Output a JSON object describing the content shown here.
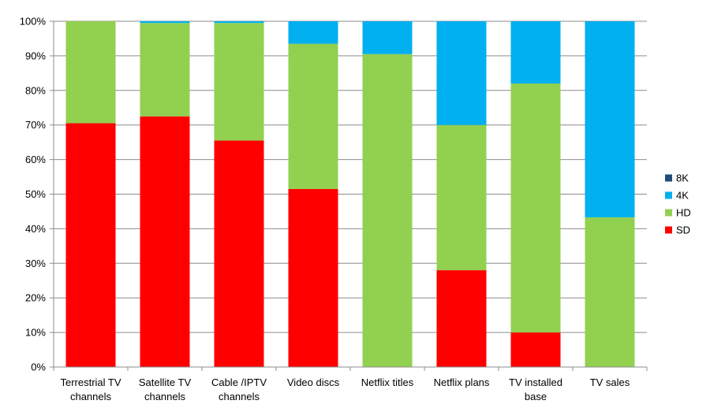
{
  "chart_data": {
    "type": "bar",
    "stacked": true,
    "categories": [
      [
        "Terrestrial TV",
        "channels"
      ],
      [
        "Satellite TV",
        "channels"
      ],
      [
        "Cable /IPTV",
        "channels"
      ],
      [
        "Video discs"
      ],
      [
        "Netflix titles"
      ],
      [
        "Netflix plans"
      ],
      [
        "TV installed",
        "base"
      ],
      [
        "TV sales"
      ]
    ],
    "series": [
      {
        "name": "SD",
        "color": "#ff0000",
        "values": [
          70.5,
          72.5,
          65.5,
          51.5,
          0,
          28,
          10,
          0
        ]
      },
      {
        "name": "HD",
        "color": "#92d050",
        "values": [
          29.5,
          27,
          34,
          42,
          90.5,
          42,
          72,
          43.3
        ]
      },
      {
        "name": "4K",
        "color": "#00b0f0",
        "values": [
          0,
          0.5,
          0.5,
          6.5,
          9.5,
          30,
          18,
          56.7
        ]
      },
      {
        "name": "8K",
        "color": "#1f4e79",
        "values": [
          0,
          0,
          0,
          0,
          0,
          0,
          0,
          0
        ]
      }
    ],
    "yticks": [
      "0%",
      "10%",
      "20%",
      "30%",
      "40%",
      "50%",
      "60%",
      "70%",
      "80%",
      "90%",
      "100%"
    ],
    "ylim": [
      0,
      100
    ],
    "grid": true,
    "legend_position": "right",
    "legend_order": [
      "8K",
      "4K",
      "HD",
      "SD"
    ],
    "title": "",
    "xlabel": "",
    "ylabel": ""
  }
}
